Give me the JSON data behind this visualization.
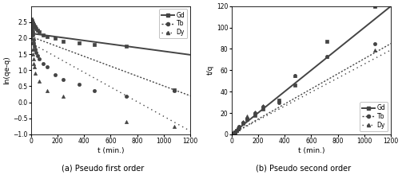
{
  "left_plot": {
    "xlabel": "t (min.)",
    "ylabel": "ln(qe-q)",
    "caption": "(a) Pseudo first order",
    "xlim": [
      0,
      1200
    ],
    "ylim": [
      -1.0,
      3.0
    ],
    "xticks": [
      0,
      200,
      400,
      600,
      800,
      1000,
      1200
    ],
    "yticks": [
      -1.0,
      -0.5,
      0.0,
      0.5,
      1.0,
      1.5,
      2.0,
      2.5
    ],
    "Gd_scatter_x": [
      3,
      5,
      7,
      9,
      11,
      13,
      15,
      18,
      20,
      25,
      30,
      40,
      50,
      60,
      90,
      120,
      180,
      240,
      360,
      480,
      720,
      1080
    ],
    "Gd_scatter_y": [
      2.6,
      2.58,
      2.55,
      2.52,
      2.5,
      2.48,
      2.46,
      2.43,
      2.4,
      2.38,
      2.35,
      2.3,
      2.25,
      2.2,
      2.1,
      2.05,
      2.0,
      1.9,
      1.85,
      1.8,
      1.75,
      0.38
    ],
    "Tb_scatter_x": [
      3,
      5,
      7,
      9,
      11,
      13,
      15,
      18,
      20,
      25,
      30,
      40,
      50,
      60,
      90,
      120,
      180,
      240,
      360,
      480,
      720,
      1080
    ],
    "Tb_scatter_y": [
      2.55,
      2.5,
      2.42,
      2.35,
      2.28,
      2.2,
      2.1,
      1.95,
      1.85,
      1.75,
      1.65,
      1.55,
      1.45,
      1.35,
      1.2,
      1.1,
      0.85,
      0.7,
      0.55,
      0.35,
      0.18,
      0.35
    ],
    "Dy_scatter_x": [
      3,
      5,
      7,
      9,
      11,
      13,
      15,
      18,
      20,
      25,
      30,
      60,
      120,
      240,
      720,
      1080
    ],
    "Dy_scatter_y": [
      2.5,
      2.4,
      2.2,
      2.0,
      1.85,
      1.65,
      1.5,
      1.35,
      1.2,
      1.1,
      0.9,
      0.65,
      0.35,
      0.2,
      -0.6,
      -0.75
    ],
    "Gd_line_x": [
      0,
      1200
    ],
    "Gd_line_y": [
      2.15,
      1.48
    ],
    "Tb_line_x": [
      0,
      1200
    ],
    "Tb_line_y": [
      2.05,
      0.2
    ],
    "Dy_line_x": [
      0,
      1200
    ],
    "Dy_line_y": [
      1.85,
      -0.9
    ]
  },
  "right_plot": {
    "xlabel": "t (min.)",
    "ylabel": "t/q",
    "caption": "(b) Pseudo second order",
    "xlim": [
      0,
      1200
    ],
    "ylim": [
      0,
      120
    ],
    "xticks": [
      0,
      200,
      400,
      600,
      800,
      1000,
      1200
    ],
    "yticks": [
      0,
      20,
      40,
      60,
      80,
      100,
      120
    ],
    "Gd_scatter_x": [
      3,
      5,
      7,
      9,
      11,
      13,
      15,
      18,
      20,
      25,
      30,
      40,
      50,
      60,
      90,
      120,
      180,
      240,
      360,
      480,
      720,
      1080
    ],
    "Gd_scatter_y": [
      0.1,
      0.2,
      0.3,
      0.4,
      0.5,
      0.6,
      0.8,
      1.0,
      1.2,
      1.8,
      2.5,
      3.5,
      5.0,
      6.5,
      10.0,
      14.0,
      18.0,
      24.0,
      32.0,
      46.0,
      87.0,
      120.0
    ],
    "Tb_scatter_x": [
      3,
      5,
      7,
      9,
      11,
      13,
      15,
      18,
      20,
      25,
      30,
      40,
      50,
      60,
      90,
      120,
      180,
      240,
      360,
      480,
      720,
      1080
    ],
    "Tb_scatter_y": [
      0.1,
      0.2,
      0.3,
      0.4,
      0.5,
      0.6,
      0.8,
      1.0,
      1.2,
      1.8,
      2.5,
      3.5,
      5.0,
      7.0,
      11.0,
      15.0,
      20.0,
      26.0,
      30.0,
      55.0,
      73.0,
      85.0
    ],
    "Dy_scatter_x": [
      3,
      5,
      7,
      9,
      11,
      13,
      15,
      18,
      20,
      25,
      30,
      40,
      50,
      60,
      90,
      120,
      180,
      240,
      360,
      480,
      720,
      1080
    ],
    "Dy_scatter_y": [
      0.1,
      0.2,
      0.3,
      0.4,
      0.5,
      0.6,
      0.8,
      1.0,
      1.2,
      1.8,
      2.5,
      3.5,
      5.0,
      7.0,
      12.0,
      17.0,
      21.0,
      27.0,
      32.0,
      55.0,
      73.0,
      79.0
    ],
    "Gd_line_x": [
      0,
      1200
    ],
    "Gd_line_y": [
      0,
      120
    ],
    "Tb_line_x": [
      0,
      1200
    ],
    "Tb_line_y": [
      0,
      85
    ],
    "Dy_line_x": [
      0,
      1200
    ],
    "Dy_line_y": [
      0,
      79
    ]
  },
  "color": "#444444",
  "marker_square": "s",
  "marker_circle": "o",
  "marker_triangle": "^",
  "markersize": 3.0,
  "linewidth": 1.0
}
